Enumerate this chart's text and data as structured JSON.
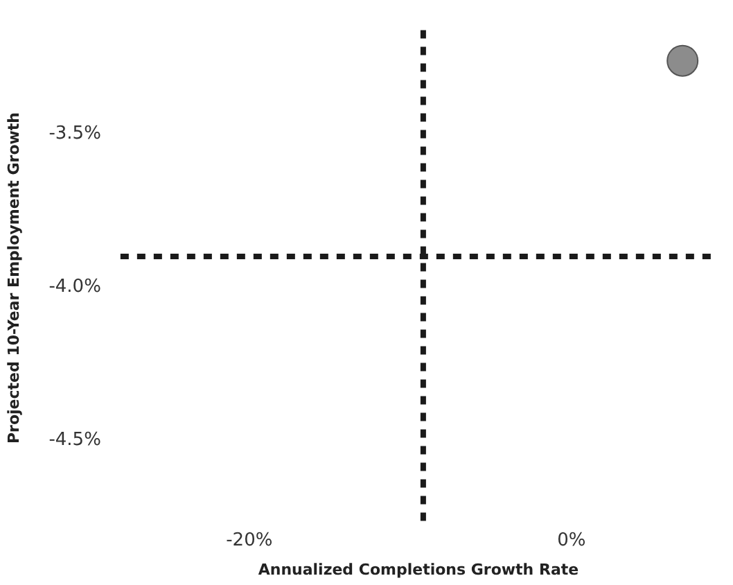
{
  "chart_data": {
    "type": "scatter",
    "xlabel": "Annualized Completions Growth Rate",
    "ylabel": "Projected 10-Year Employment Growth",
    "series": [
      {
        "color": "#8c8c8c",
        "x": [
          6.9
        ],
        "values": [
          -3.26
        ]
      }
    ],
    "xlim": [
      -28,
      9
    ],
    "ylim": [
      -4.78,
      -3.16
    ],
    "xticks": [
      {
        "value": -20,
        "label": "-20%"
      },
      {
        "value": 0,
        "label": "0%"
      }
    ],
    "yticks": [
      {
        "value": -4.5,
        "label": "-4.5%"
      },
      {
        "value": -4.0,
        "label": "-4.0%"
      },
      {
        "value": -3.5,
        "label": "-3.5%"
      }
    ],
    "ref_lines": [
      {
        "axis": "x",
        "value": -9.2,
        "color": "#1a1a1a",
        "line_style": "dashed"
      },
      {
        "axis": "y",
        "value": -3.9,
        "color": "#1a1a1a",
        "line_style": "dashed"
      }
    ],
    "grid": false,
    "legend": false,
    "marker": "circle"
  }
}
